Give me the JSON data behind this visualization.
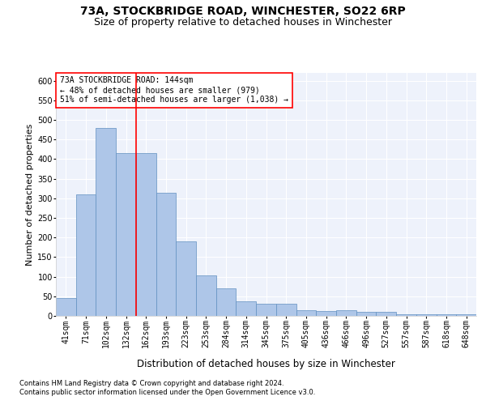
{
  "title1": "73A, STOCKBRIDGE ROAD, WINCHESTER, SO22 6RP",
  "title2": "Size of property relative to detached houses in Winchester",
  "xlabel": "Distribution of detached houses by size in Winchester",
  "ylabel": "Number of detached properties",
  "annotation_line1": "73A STOCKBRIDGE ROAD: 144sqm",
  "annotation_line2": "← 48% of detached houses are smaller (979)",
  "annotation_line3": "51% of semi-detached houses are larger (1,038) →",
  "footnote1": "Contains HM Land Registry data © Crown copyright and database right 2024.",
  "footnote2": "Contains public sector information licensed under the Open Government Licence v3.0.",
  "categories": [
    "41sqm",
    "71sqm",
    "102sqm",
    "132sqm",
    "162sqm",
    "193sqm",
    "223sqm",
    "253sqm",
    "284sqm",
    "314sqm",
    "345sqm",
    "375sqm",
    "405sqm",
    "436sqm",
    "466sqm",
    "496sqm",
    "527sqm",
    "557sqm",
    "587sqm",
    "618sqm",
    "648sqm"
  ],
  "values": [
    46,
    311,
    480,
    415,
    415,
    314,
    190,
    103,
    70,
    38,
    30,
    30,
    14,
    12,
    15,
    11,
    10,
    5,
    5,
    5,
    5
  ],
  "bar_color": "#aec6e8",
  "bar_edge_color": "#6090c0",
  "vline_color": "red",
  "vline_pos": 3.5,
  "ylim": [
    0,
    620
  ],
  "yticks": [
    0,
    50,
    100,
    150,
    200,
    250,
    300,
    350,
    400,
    450,
    500,
    550,
    600
  ],
  "background_color": "#eef2fb",
  "grid_color": "#ffffff",
  "title1_fontsize": 10,
  "title2_fontsize": 9,
  "xlabel_fontsize": 8.5,
  "ylabel_fontsize": 8,
  "tick_fontsize": 7,
  "annot_fontsize": 7
}
